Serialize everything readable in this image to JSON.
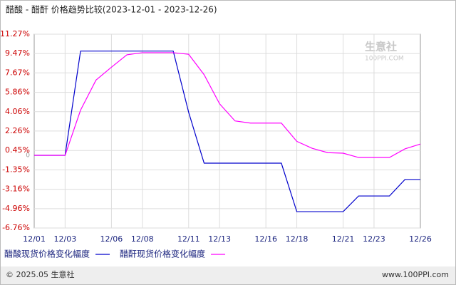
{
  "chart_data": {
    "type": "line",
    "title": "醋酸 - 醋酐 价格趋势比较(2023-12-01 - 2023-12-26)",
    "watermark": "生意社",
    "watermark_sub": "100PPI.COM",
    "footer_left": "© 2025.05 生意社",
    "footer_right": "www.100PPI.com",
    "categories": [
      "12/01",
      null,
      "12/03",
      null,
      null,
      "12/06",
      null,
      "12/08",
      null,
      null,
      "12/11",
      null,
      "12/13",
      null,
      null,
      "12/16",
      null,
      "12/18",
      null,
      null,
      "12/21",
      null,
      "12/23",
      null,
      null,
      "12/26"
    ],
    "series": [
      {
        "name": "醋酸现货价格变化幅度",
        "color": "#0000cc",
        "values": [
          0,
          0,
          0,
          9.7,
          9.7,
          9.7,
          9.7,
          9.7,
          9.7,
          9.7,
          4.0,
          -0.73,
          -0.73,
          -0.73,
          -0.73,
          -0.73,
          -0.73,
          -5.24,
          -5.24,
          -5.24,
          -5.24,
          -3.78,
          -3.78,
          -3.78,
          -2.25,
          -2.25
        ]
      },
      {
        "name": "醋酐现货价格变化幅度",
        "color": "#ff00ff",
        "values": [
          0,
          0,
          0,
          4.2,
          7.0,
          8.2,
          9.35,
          9.55,
          9.55,
          9.55,
          9.4,
          7.5,
          4.8,
          3.2,
          3.0,
          3.0,
          3.0,
          1.3,
          0.65,
          0.25,
          0.2,
          -0.2,
          -0.2,
          -0.2,
          0.6,
          1.05
        ]
      }
    ],
    "ylim": [
      -6.76,
      11.27
    ],
    "yticks": [
      {
        "value": -6.76,
        "label": "-6.76%"
      },
      {
        "value": -4.96,
        "label": "-4.96%"
      },
      {
        "value": -3.16,
        "label": "-3.16%"
      },
      {
        "value": -1.35,
        "label": "-1.35%"
      },
      {
        "value": 0.45,
        "label": "0.45%"
      },
      {
        "value": 2.26,
        "label": "2.26%"
      },
      {
        "value": 4.06,
        "label": "4.06%"
      },
      {
        "value": 5.86,
        "label": "5.86%"
      },
      {
        "value": 7.67,
        "label": "7.67%"
      },
      {
        "value": 9.47,
        "label": "9.47%"
      },
      {
        "value": 11.27,
        "label": "11.27%"
      }
    ],
    "zero_mark": 0,
    "grid": true
  }
}
